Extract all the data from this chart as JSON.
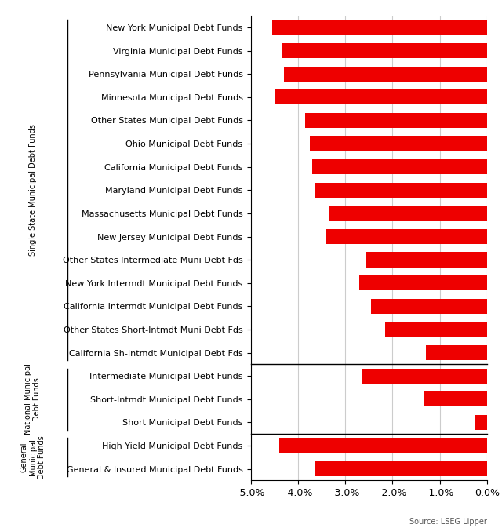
{
  "categories": [
    "New York Municipal Debt Funds",
    "Virginia Municipal Debt Funds",
    "Pennsylvania Municipal Debt Funds",
    "Minnesota Municipal Debt Funds",
    "Other States Municipal Debt Funds",
    "Ohio Municipal Debt Funds",
    "California Municipal Debt Funds",
    "Maryland Municipal Debt Funds",
    "Massachusetts Municipal Debt Funds",
    "New Jersey Municipal Debt Funds",
    "Other States Intermediate Muni Debt Fds",
    "New York Intermdt Municipal Debt Funds",
    "California Intermdt Municipal Debt Funds",
    "Other States Short-Intmdt Muni Debt Fds",
    "California Sh-Intmdt Municipal Debt Fds",
    "Intermediate Municipal Debt Funds",
    "Short-Intmdt Municipal Debt Funds",
    "Short Municipal Debt Funds",
    "High Yield Municipal Debt Funds",
    "General & Insured Municipal Debt Funds"
  ],
  "values": [
    -4.55,
    -4.35,
    -4.3,
    -4.5,
    -3.85,
    -3.75,
    -3.7,
    -3.65,
    -3.35,
    -3.4,
    -2.55,
    -2.7,
    -2.45,
    -2.15,
    -1.3,
    -2.65,
    -1.35,
    -0.25,
    -4.4,
    -3.65
  ],
  "group_labels": [
    "Single State Municipal Debt Funds",
    "National Municipal\nDebt Funds",
    "General\nMunicipal\nDebt Funds"
  ],
  "group_ranges": [
    [
      0,
      14
    ],
    [
      15,
      17
    ],
    [
      18,
      19
    ]
  ],
  "bar_color": "#ee0000",
  "xlim": [
    -5.0,
    0.0
  ],
  "xticks": [
    -5.0,
    -4.0,
    -3.0,
    -2.0,
    -1.0,
    0.0
  ],
  "xticklabels": [
    "-5.0%",
    "-4.0%",
    "-3.0%",
    "-2.0%",
    "-1.0%",
    "0.0%"
  ],
  "source_text": "Source: LSEG Lipper",
  "background_color": "#ffffff",
  "bar_height": 0.65,
  "grid_color": "#cccccc"
}
